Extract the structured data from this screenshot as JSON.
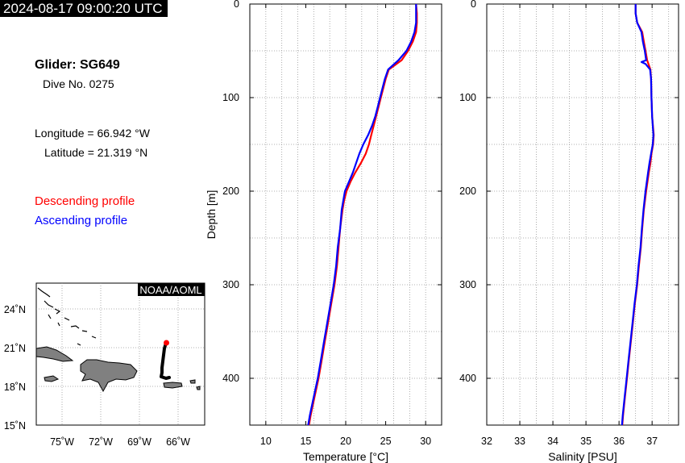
{
  "timestamp": "2024-08-17 09:00:20 UTC",
  "glider": "Glider: SG649",
  "dive": "Dive No. 0275",
  "longitude": "Longitude = 66.942 °W",
  "latitude": "Latitude = 21.319 °N",
  "legend": {
    "descending": "Descending profile",
    "ascending": "Ascending profile",
    "descending_color": "#ff0000",
    "ascending_color": "#0000ff"
  },
  "map": {
    "credit": "NOAA/AOML",
    "lat_ticks": [
      "24˚N",
      "21˚N",
      "18˚N",
      "15˚N"
    ],
    "lon_ticks": [
      "75˚W",
      "72˚W",
      "69˚W",
      "66˚W"
    ],
    "land_color": "#808080",
    "track_color": "#000000",
    "position_color": "#ff0000"
  },
  "chart_data": [
    {
      "type": "line",
      "xlabel": "Temperature [°C]",
      "ylabel": "Depth [m]",
      "xlim": [
        8,
        32
      ],
      "ylim": [
        450,
        0
      ],
      "x_ticks": [
        "10",
        "15",
        "20",
        "25",
        "30"
      ],
      "y_ticks": [
        "0",
        "100",
        "200",
        "300",
        "400"
      ],
      "grid": true,
      "series": [
        {
          "name": "Descending profile",
          "color": "#ff0000",
          "depth": [
            0,
            10,
            20,
            30,
            40,
            50,
            60,
            70,
            80,
            90,
            100,
            110,
            120,
            130,
            140,
            150,
            160,
            170,
            180,
            190,
            200,
            210,
            220,
            240,
            260,
            280,
            300,
            320,
            340,
            360,
            380,
            400,
            420,
            440,
            450
          ],
          "value": [
            28.8,
            28.9,
            28.9,
            28.8,
            28.4,
            27.8,
            27.0,
            25.4,
            25.0,
            24.7,
            24.4,
            24.1,
            23.8,
            23.5,
            23.2,
            22.9,
            22.5,
            21.9,
            21.2,
            20.6,
            20.1,
            19.8,
            19.6,
            19.3,
            19.1,
            18.9,
            18.6,
            18.2,
            17.8,
            17.4,
            17.0,
            16.6,
            16.1,
            15.6,
            15.4
          ]
        },
        {
          "name": "Ascending profile",
          "color": "#0000ff",
          "depth": [
            0,
            10,
            20,
            30,
            40,
            50,
            60,
            70,
            80,
            90,
            100,
            110,
            120,
            130,
            140,
            150,
            160,
            170,
            180,
            190,
            200,
            210,
            220,
            240,
            260,
            280,
            300,
            320,
            340,
            360,
            380,
            400,
            420,
            440,
            450
          ],
          "value": [
            28.8,
            28.8,
            28.8,
            28.6,
            28.2,
            27.6,
            26.6,
            25.3,
            24.9,
            24.6,
            24.3,
            24.0,
            23.7,
            23.3,
            22.8,
            22.2,
            21.7,
            21.3,
            20.9,
            20.4,
            19.9,
            19.7,
            19.5,
            19.3,
            19.0,
            18.8,
            18.5,
            18.1,
            17.7,
            17.3,
            16.9,
            16.5,
            16.0,
            15.5,
            15.3
          ]
        }
      ]
    },
    {
      "type": "line",
      "xlabel": "Salinity [PSU]",
      "ylabel": "",
      "xlim": [
        32,
        37.8
      ],
      "ylim": [
        450,
        0
      ],
      "x_ticks": [
        "32",
        "33",
        "34",
        "35",
        "36",
        "37"
      ],
      "y_ticks": [
        "0",
        "100",
        "200",
        "300",
        "400"
      ],
      "grid": true,
      "series": [
        {
          "name": "Descending profile",
          "color": "#ff0000",
          "depth": [
            0,
            10,
            20,
            30,
            40,
            50,
            60,
            70,
            80,
            100,
            120,
            140,
            150,
            160,
            170,
            180,
            200,
            220,
            240,
            260,
            280,
            300,
            320,
            340,
            360,
            380,
            400,
            420,
            440,
            450
          ],
          "value": [
            36.5,
            36.5,
            36.55,
            36.7,
            36.75,
            36.8,
            36.85,
            36.95,
            36.97,
            36.98,
            37.0,
            37.05,
            37.03,
            36.98,
            36.95,
            36.9,
            36.82,
            36.75,
            36.7,
            36.66,
            36.6,
            36.55,
            36.48,
            36.42,
            36.36,
            36.3,
            36.24,
            36.18,
            36.12,
            36.1
          ]
        },
        {
          "name": "Ascending profile",
          "color": "#0000ff",
          "depth": [
            0,
            10,
            20,
            30,
            40,
            50,
            60,
            62,
            64,
            70,
            80,
            100,
            120,
            140,
            150,
            160,
            170,
            180,
            200,
            220,
            240,
            260,
            280,
            300,
            320,
            340,
            360,
            380,
            400,
            420,
            440,
            450
          ],
          "value": [
            36.5,
            36.5,
            36.55,
            36.68,
            36.72,
            36.78,
            36.82,
            36.68,
            36.8,
            36.94,
            36.97,
            36.98,
            37.0,
            37.04,
            37.02,
            36.97,
            36.92,
            36.88,
            36.8,
            36.74,
            36.69,
            36.65,
            36.59,
            36.54,
            36.47,
            36.41,
            36.35,
            36.29,
            36.23,
            36.17,
            36.11,
            36.09
          ]
        }
      ]
    }
  ]
}
